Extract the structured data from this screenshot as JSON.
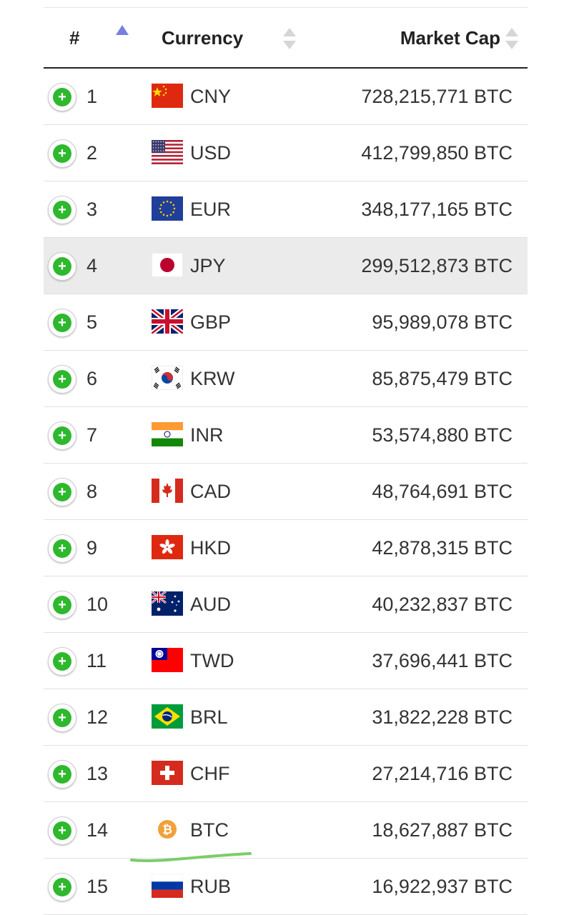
{
  "table": {
    "header": {
      "rank": "#",
      "currency": "Currency",
      "market_cap": "Market Cap"
    },
    "highlight_row": 4,
    "rows": [
      {
        "rank": "1",
        "code": "CNY",
        "market_cap": "728,215,771 BTC"
      },
      {
        "rank": "2",
        "code": "USD",
        "market_cap": "412,799,850 BTC"
      },
      {
        "rank": "3",
        "code": "EUR",
        "market_cap": "348,177,165 BTC"
      },
      {
        "rank": "4",
        "code": "JPY",
        "market_cap": "299,512,873 BTC"
      },
      {
        "rank": "5",
        "code": "GBP",
        "market_cap": "95,989,078 BTC"
      },
      {
        "rank": "6",
        "code": "KRW",
        "market_cap": "85,875,479 BTC"
      },
      {
        "rank": "7",
        "code": "INR",
        "market_cap": "53,574,880 BTC"
      },
      {
        "rank": "8",
        "code": "CAD",
        "market_cap": "48,764,691 BTC"
      },
      {
        "rank": "9",
        "code": "HKD",
        "market_cap": "42,878,315 BTC"
      },
      {
        "rank": "10",
        "code": "AUD",
        "market_cap": "40,232,837 BTC"
      },
      {
        "rank": "11",
        "code": "TWD",
        "market_cap": "37,696,441 BTC"
      },
      {
        "rank": "12",
        "code": "BRL",
        "market_cap": "31,822,228 BTC"
      },
      {
        "rank": "13",
        "code": "CHF",
        "market_cap": "27,214,716 BTC"
      },
      {
        "rank": "14",
        "code": "BTC",
        "market_cap": "18,627,887 BTC"
      },
      {
        "rank": "15",
        "code": "RUB",
        "market_cap": "16,922,937 BTC"
      }
    ]
  },
  "colors": {
    "accent_green": "#2eb82e",
    "highlight_row": "#ebebeb",
    "sort_active": "#7a7ee0",
    "sort_inactive": "#d6d6d6",
    "annotation_underline": "#7ccc6a"
  },
  "icons": {
    "expand": "plus-circle-icon",
    "sort": "sort-arrows-icon",
    "sort_active": "sort-up-icon"
  }
}
